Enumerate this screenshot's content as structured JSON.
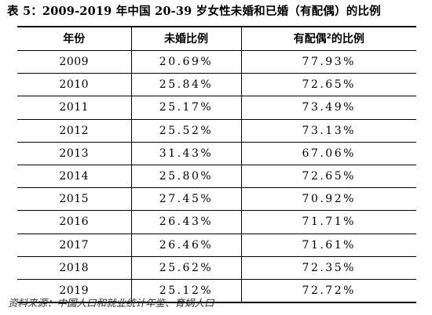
{
  "title": "表 5：2009-2019 年中国 20-39 岁女性未婚和已婚（有配偶）的比例",
  "table": {
    "headers": {
      "year": "年份",
      "unmarried": "未婚比例",
      "married_prefix": "有配偶",
      "married_sup": "2",
      "married_suffix": "的比例"
    },
    "rows": [
      {
        "year": "2009",
        "unmarried": "20.69%",
        "married": "77.93%"
      },
      {
        "year": "2010",
        "unmarried": "25.84%",
        "married": "72.65%"
      },
      {
        "year": "2011",
        "unmarried": "25.17%",
        "married": "73.49%"
      },
      {
        "year": "2012",
        "unmarried": "25.52%",
        "married": "73.13%"
      },
      {
        "year": "2013",
        "unmarried": "31.43%",
        "married": "67.06%"
      },
      {
        "year": "2014",
        "unmarried": "25.80%",
        "married": "72.65%"
      },
      {
        "year": "2015",
        "unmarried": "27.45%",
        "married": "70.92%"
      },
      {
        "year": "2016",
        "unmarried": "26.43%",
        "married": "71.71%"
      },
      {
        "year": "2017",
        "unmarried": "26.46%",
        "married": "71.61%"
      },
      {
        "year": "2018",
        "unmarried": "25.62%",
        "married": "72.35%"
      },
      {
        "year": "2019",
        "unmarried": "25.12%",
        "married": "72.72%"
      }
    ]
  },
  "source": "资料来源：中国人口和就业统计年鉴、育娲人口"
}
